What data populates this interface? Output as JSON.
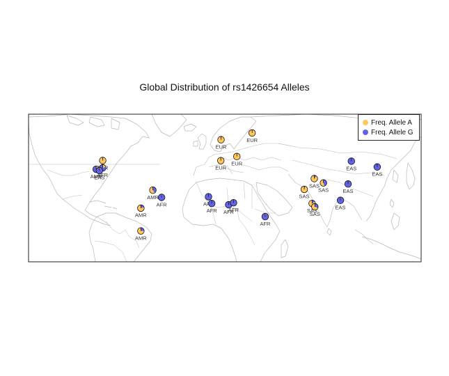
{
  "title": "Global Distribution of rs1426654 Alleles",
  "legend": {
    "items": [
      {
        "label": "Freq. Allele A",
        "color": "#FFC65D"
      },
      {
        "label": "Freq. Allele G",
        "color": "#6363E8"
      }
    ]
  },
  "colors": {
    "allele_a": "#FFC65D",
    "allele_g": "#6363E8",
    "land_border": "#b8b8b8",
    "frame": "#222222"
  },
  "sites": [
    {
      "label": "EUR",
      "lon": -3.5,
      "lat": 56.0,
      "freq_a": 0.99
    },
    {
      "label": "EUR",
      "lon": 25.0,
      "lat": 61.0,
      "freq_a": 1.0
    },
    {
      "label": "EUR",
      "lon": -3.7,
      "lat": 40.4,
      "freq_a": 0.99
    },
    {
      "label": "EUR",
      "lon": 11.0,
      "lat": 43.5,
      "freq_a": 0.98
    },
    {
      "label": "EUR",
      "lon": -112.0,
      "lat": 40.5,
      "freq_a": 0.99
    },
    {
      "label": "AFR",
      "lon": -112.0,
      "lat": 35.0,
      "freq_a": 0.2
    },
    {
      "label": "AMR",
      "lon": -118.0,
      "lat": 34.0,
      "freq_a": 0.35
    },
    {
      "label": "EAS",
      "lon": -115.0,
      "lat": 33.0,
      "freq_a": 0.05
    },
    {
      "label": "AMR",
      "lon": -66.0,
      "lat": 18.4,
      "freq_a": 0.6
    },
    {
      "label": "AFR",
      "lon": -58.0,
      "lat": 13.0,
      "freq_a": 0.05
    },
    {
      "label": "AMR",
      "lon": -77.0,
      "lat": 5.0,
      "freq_a": 0.8
    },
    {
      "label": "AMR",
      "lon": -77.0,
      "lat": -12.0,
      "freq_a": 0.75
    },
    {
      "label": "AFR",
      "lon": -15.0,
      "lat": 13.5,
      "freq_a": 0.02
    },
    {
      "label": "AFR",
      "lon": -12.0,
      "lat": 8.5,
      "freq_a": 0.01
    },
    {
      "label": "AFR",
      "lon": 3.5,
      "lat": 7.5,
      "freq_a": 0.02
    },
    {
      "label": "AFR",
      "lon": 8.0,
      "lat": 9.0,
      "freq_a": 0.03
    },
    {
      "label": "AFR",
      "lon": 37.0,
      "lat": -1.3,
      "freq_a": 0.05
    },
    {
      "label": "SAS",
      "lon": 82.0,
      "lat": 27.0,
      "freq_a": 0.9
    },
    {
      "label": "SAS",
      "lon": 72.8,
      "lat": 19.0,
      "freq_a": 0.95
    },
    {
      "label": "SAS",
      "lon": 90.4,
      "lat": 23.8,
      "freq_a": 0.55
    },
    {
      "label": "SAS",
      "lon": 80.0,
      "lat": 8.5,
      "freq_a": 0.85
    },
    {
      "label": "SAS",
      "lon": 82.5,
      "lat": 6.0,
      "freq_a": 0.7
    },
    {
      "label": "EAS",
      "lon": 116.0,
      "lat": 40.0,
      "freq_a": 0.01
    },
    {
      "label": "EAS",
      "lon": 139.7,
      "lat": 35.7,
      "freq_a": 0.0
    },
    {
      "label": "EAS",
      "lon": 113.0,
      "lat": 23.0,
      "freq_a": 0.02
    },
    {
      "label": "EAS",
      "lon": 106.0,
      "lat": 10.8,
      "freq_a": 0.05
    }
  ]
}
